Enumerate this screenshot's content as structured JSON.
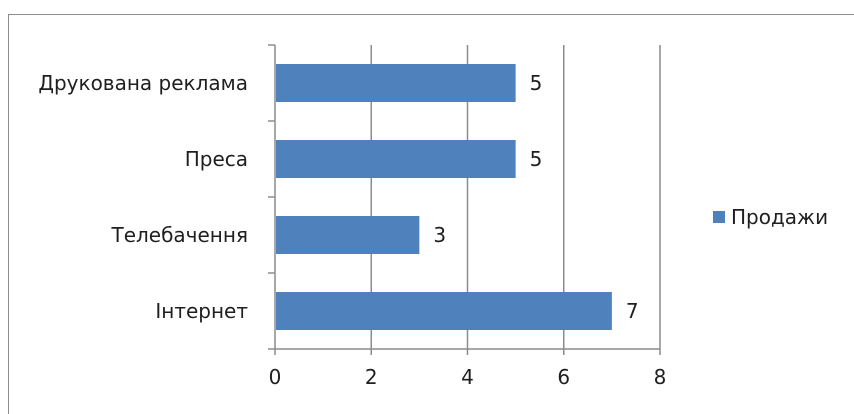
{
  "chart_data": {
    "type": "bar",
    "orientation": "horizontal",
    "categories": [
      "Інтернет",
      "Телебачення",
      "Преса",
      "Друкована реклама"
    ],
    "series": [
      {
        "name": "Продажи",
        "values": [
          7,
          3,
          5,
          5
        ],
        "color": "#4f81bd"
      }
    ],
    "xlim": [
      0,
      8
    ],
    "xticks": [
      "0",
      "2",
      "4",
      "6",
      "8"
    ],
    "grid": true,
    "legend": "right",
    "data_labels": true
  }
}
